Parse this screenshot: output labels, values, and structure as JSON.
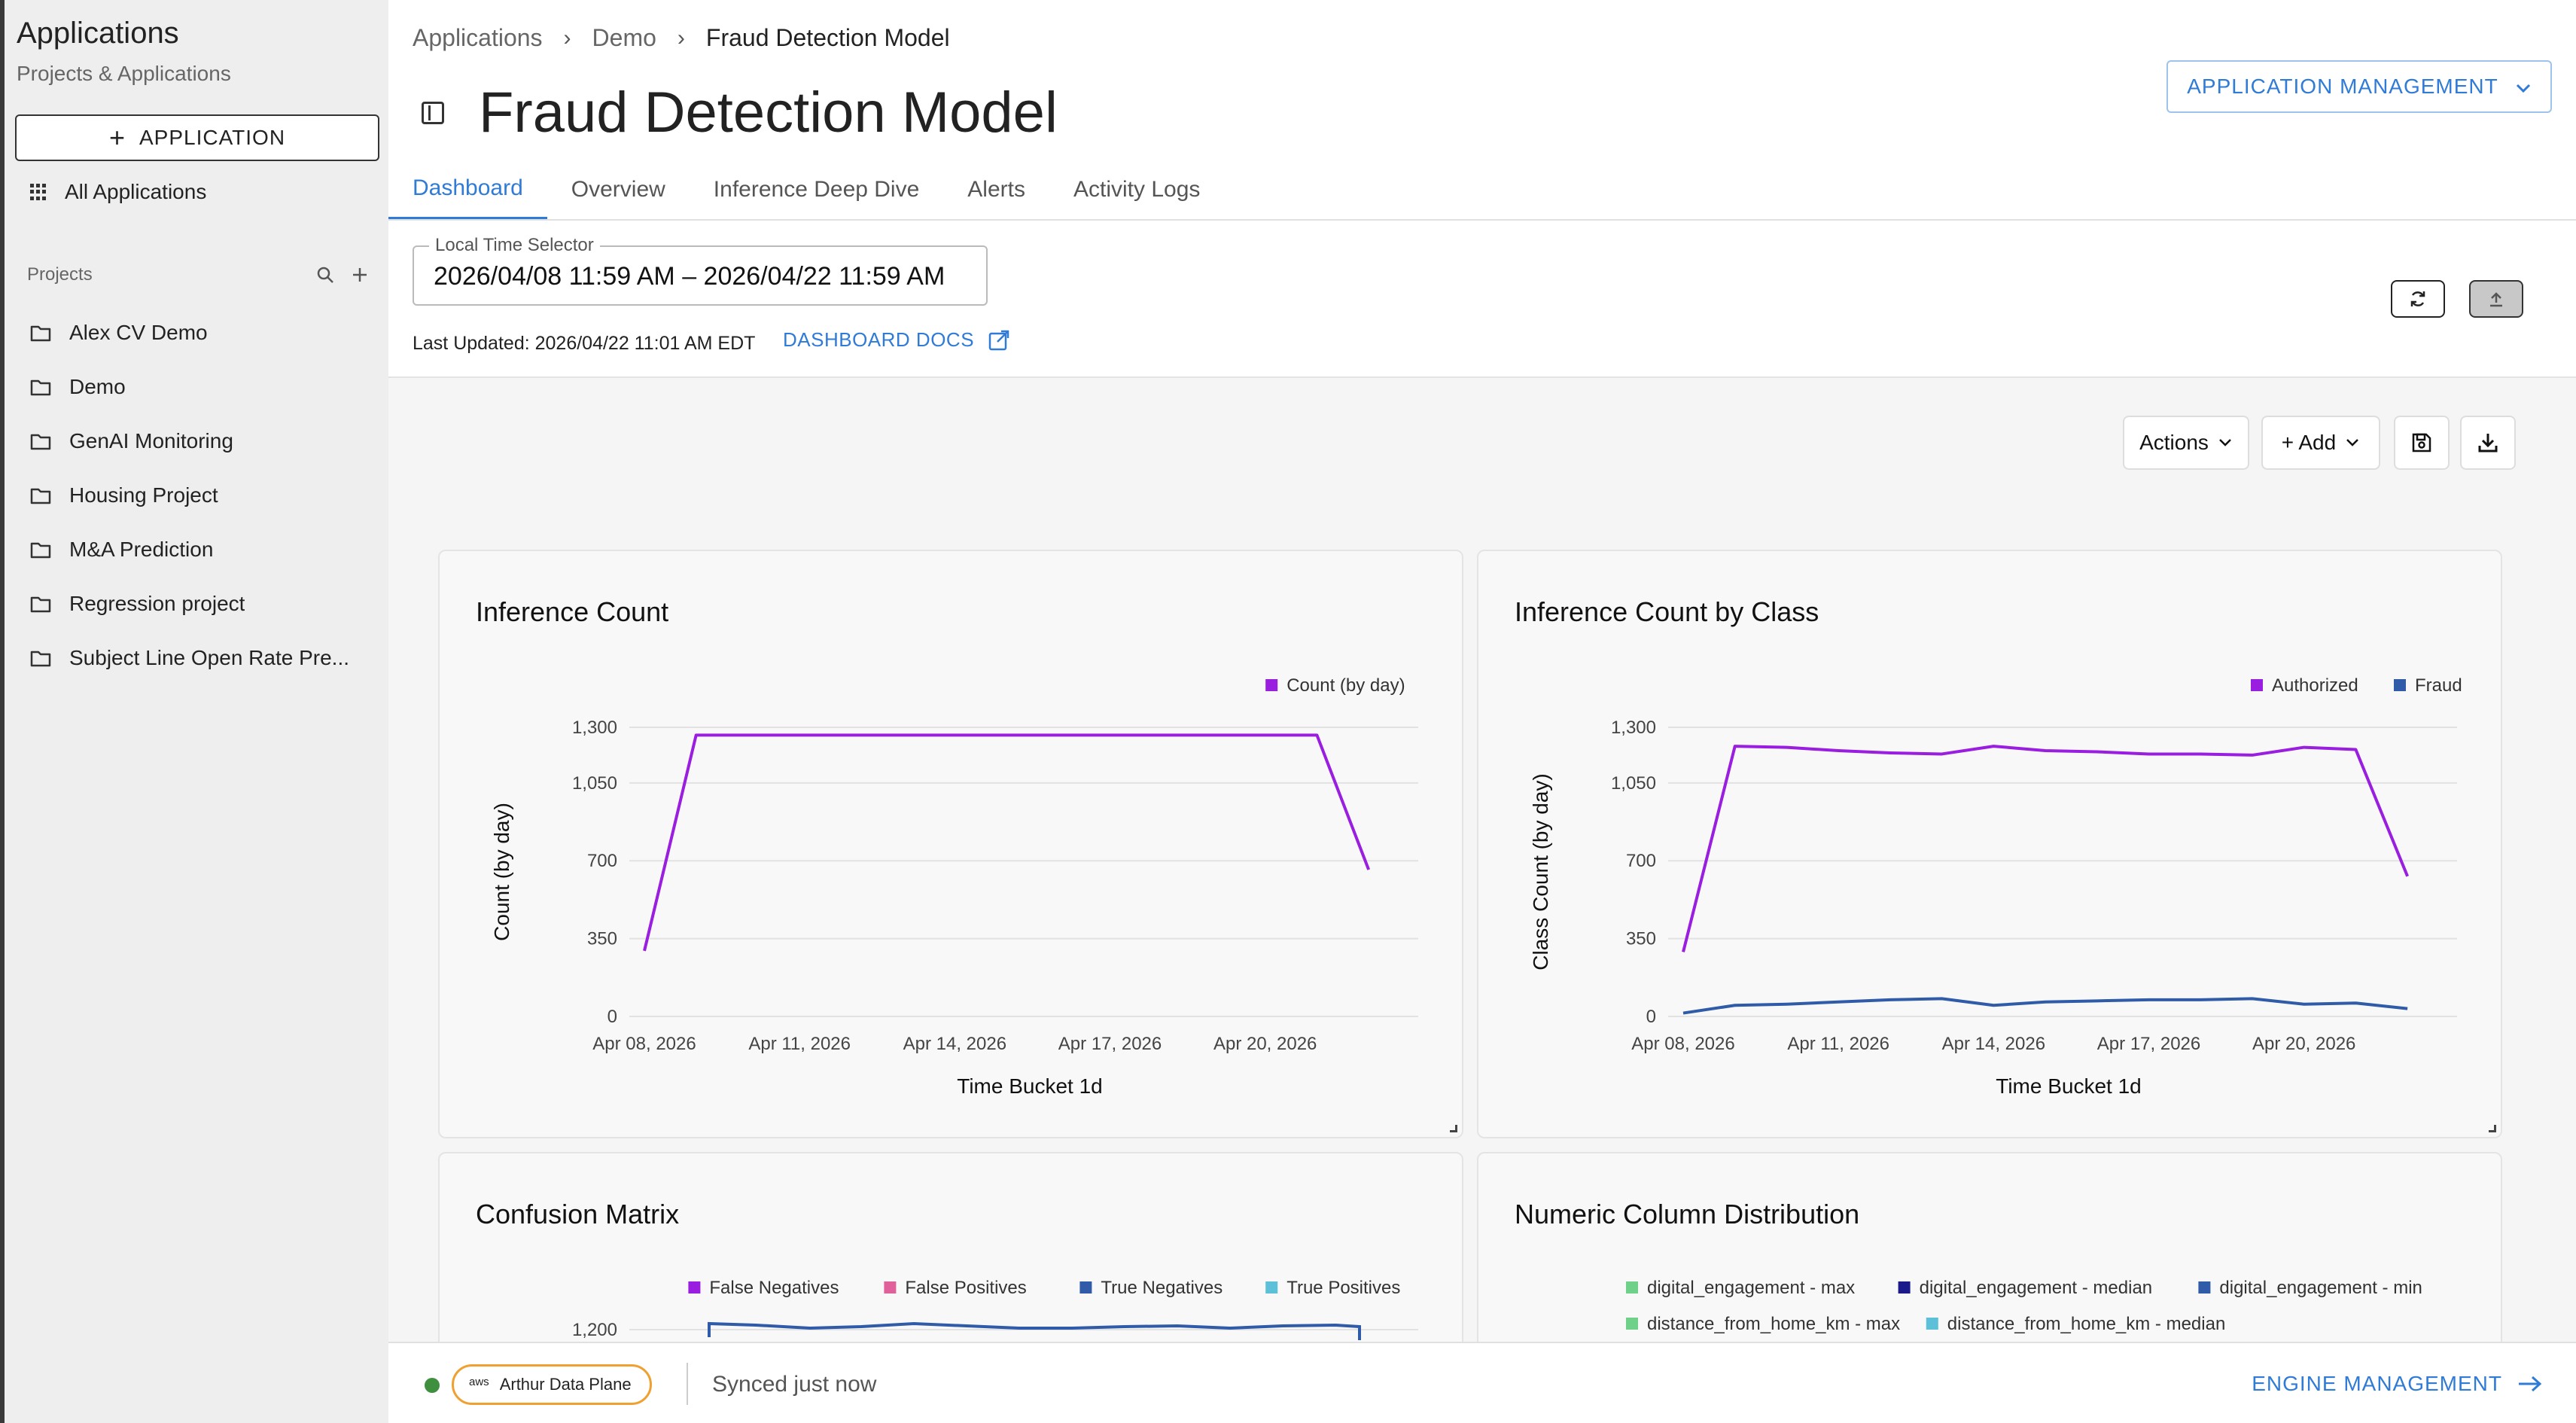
{
  "sidebar": {
    "title": "Applications",
    "subtitle": "Projects & Applications",
    "add_button_label": "APPLICATION",
    "all_apps_label": "All Applications",
    "projects_header": "Projects",
    "projects": [
      {
        "label": "Alex CV Demo"
      },
      {
        "label": "Demo"
      },
      {
        "label": "GenAI Monitoring"
      },
      {
        "label": "Housing Project"
      },
      {
        "label": "M&A Prediction"
      },
      {
        "label": "Regression project"
      },
      {
        "label": "Subject Line Open Rate Pre..."
      }
    ]
  },
  "header": {
    "breadcrumbs": [
      "Applications",
      "Demo",
      "Fraud Detection Model"
    ],
    "title": "Fraud Detection Model",
    "app_management_label": "APPLICATION MANAGEMENT",
    "tabs": [
      {
        "label": "Dashboard",
        "active": true
      },
      {
        "label": "Overview"
      },
      {
        "label": "Inference Deep Dive"
      },
      {
        "label": "Alerts"
      },
      {
        "label": "Activity Logs"
      }
    ]
  },
  "time_selector": {
    "label": "Local Time Selector",
    "value": "2026/04/08 11:59 AM – 2026/04/22 11:59 AM",
    "last_updated": "Last Updated: 2026/04/22 11:01 AM EDT",
    "docs_label": "DASHBOARD DOCS"
  },
  "dashboard_toolbar": {
    "actions_label": "Actions",
    "add_label": "+ Add"
  },
  "colors": {
    "accent": "#2f7bd6",
    "purple": "#9a1ee0",
    "blue": "#2f5ba8",
    "pink": "#e0609a",
    "navy": "#1a1a8a",
    "teal": "#5bc0d8",
    "green": "#6fd08a",
    "status_green": "#3f8f3f",
    "aws_orange": "#f0a030"
  },
  "chart_data": [
    {
      "type": "line",
      "title": "Inference Count",
      "xlabel": "Time Bucket 1d",
      "ylabel": "Count (by day)",
      "ylim": [
        0,
        1300
      ],
      "yticks": [
        "0",
        "350",
        "700",
        "1,050",
        "1,300"
      ],
      "yticks_values": [
        0,
        350,
        700,
        1050,
        1300
      ],
      "xtick_labels": [
        "Apr 08, 2026",
        "Apr 11, 2026",
        "Apr 14, 2026",
        "Apr 17, 2026",
        "Apr 20, 2026"
      ],
      "xtick_days": [
        0,
        3,
        6,
        9,
        12
      ],
      "x_days": [
        0,
        1,
        2,
        3,
        4,
        5,
        6,
        7,
        8,
        9,
        10,
        11,
        12,
        13,
        14
      ],
      "legend_position": "top-right",
      "series": [
        {
          "name": "Count (by day)",
          "color": "#9a1ee0",
          "values": [
            295,
            1265,
            1265,
            1265,
            1265,
            1265,
            1265,
            1265,
            1265,
            1265,
            1265,
            1265,
            1265,
            1265,
            660
          ]
        }
      ]
    },
    {
      "type": "line",
      "title": "Inference Count by Class",
      "xlabel": "Time Bucket 1d",
      "ylabel": "Class Count (by day)",
      "ylim": [
        0,
        1300
      ],
      "yticks": [
        "0",
        "350",
        "700",
        "1,050",
        "1,300"
      ],
      "yticks_values": [
        0,
        350,
        700,
        1050,
        1300
      ],
      "xtick_labels": [
        "Apr 08, 2026",
        "Apr 11, 2026",
        "Apr 14, 2026",
        "Apr 17, 2026",
        "Apr 20, 2026"
      ],
      "xtick_days": [
        0,
        3,
        6,
        9,
        12
      ],
      "x_days": [
        0,
        1,
        2,
        3,
        4,
        5,
        6,
        7,
        8,
        9,
        10,
        11,
        12,
        13,
        14
      ],
      "legend_position": "top-right",
      "series": [
        {
          "name": "Authorized",
          "color": "#9a1ee0",
          "values": [
            290,
            1215,
            1210,
            1195,
            1185,
            1180,
            1215,
            1195,
            1190,
            1180,
            1180,
            1175,
            1210,
            1200,
            630
          ]
        },
        {
          "name": "Fraud",
          "color": "#2f5ba8",
          "values": [
            15,
            50,
            55,
            65,
            75,
            80,
            50,
            65,
            70,
            75,
            75,
            80,
            55,
            60,
            35
          ]
        }
      ]
    },
    {
      "type": "line",
      "title": "Confusion Matrix",
      "ytick_labels_visible": [
        "1,200"
      ],
      "legend_position": "top-right",
      "series": [
        {
          "name": "False Negatives",
          "color": "#9a1ee0"
        },
        {
          "name": "False Positives",
          "color": "#e0609a"
        },
        {
          "name": "True Negatives",
          "color": "#2f5ba8"
        },
        {
          "name": "True Positives",
          "color": "#5bc0d8"
        }
      ]
    },
    {
      "type": "line",
      "title": "Numeric Column Distribution",
      "legend_position": "top",
      "series": [
        {
          "name": "digital_engagement - max",
          "color": "#6fd08a"
        },
        {
          "name": "digital_engagement - median",
          "color": "#1a1a8a"
        },
        {
          "name": "digital_engagement - min",
          "color": "#2f5ba8"
        },
        {
          "name": "distance_from_home_km - max",
          "color": "#6fd08a"
        },
        {
          "name": "distance_from_home_km - median",
          "color": "#5bc0d8"
        }
      ]
    }
  ],
  "footer": {
    "aws_label": "aws",
    "data_plane_label": "Arthur Data Plane",
    "sync_status": "Synced just now",
    "engine_management_label": "ENGINE MANAGEMENT"
  }
}
